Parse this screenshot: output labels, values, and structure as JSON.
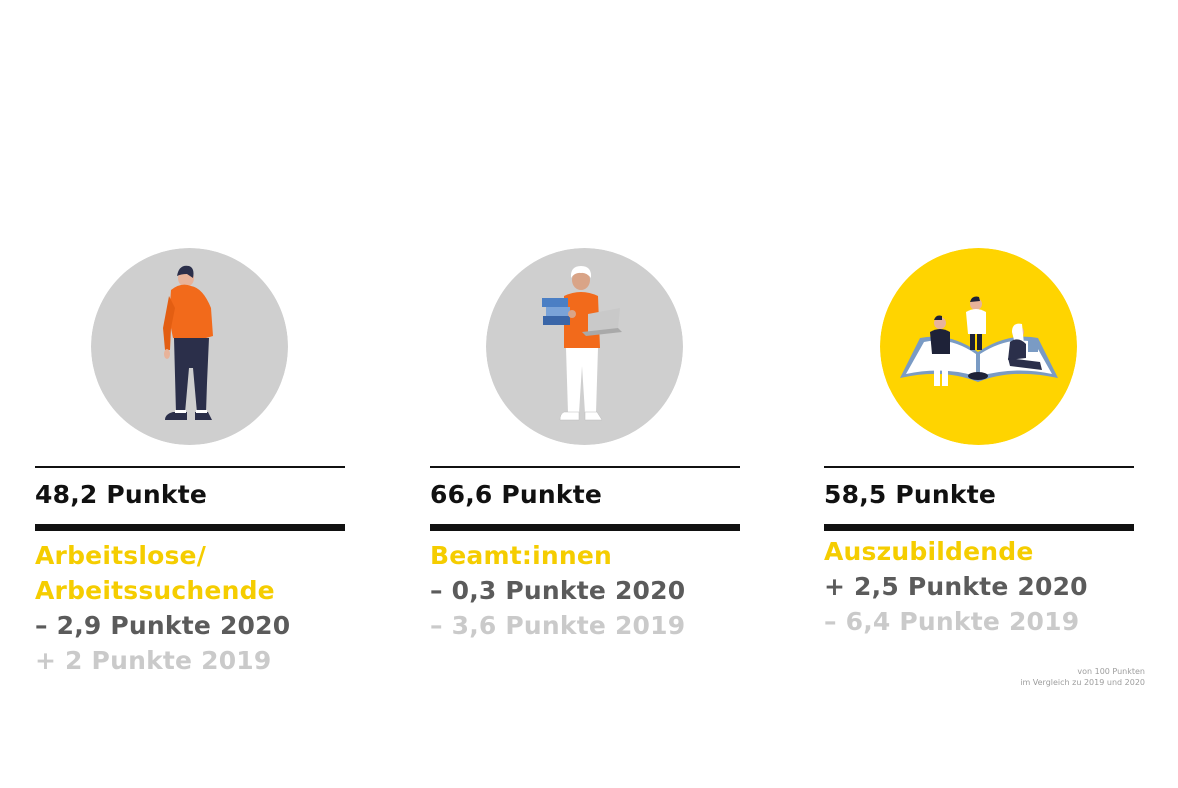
{
  "colors": {
    "accent_yellow": "#f5cd00",
    "text_dark": "#5b5b5b",
    "text_light": "#cacaca",
    "circle_gray": "#cfcfcf",
    "circle_yellow": "#ffd400"
  },
  "cards": [
    {
      "illustration": "standing-person-icon",
      "score": "48,2 Punkte",
      "group_lines": [
        "Arbeitslose/",
        "Arbeitssuchende"
      ],
      "change_2020": "– 2,9 Punkte 2020",
      "change_2019": "+ 2 Punkte 2019"
    },
    {
      "illustration": "person-with-laptop-and-books-icon",
      "score": "66,6 Punkte",
      "group_lines": [
        "Beamt:innen"
      ],
      "change_2020": "– 0,3 Punkte 2020",
      "change_2019": "– 3,6 Punkte 2019"
    },
    {
      "illustration": "people-on-open-book-icon",
      "score": "58,5 Punkte",
      "group_lines": [
        "Auszubildende"
      ],
      "change_2020": "+ 2,5 Punkte 2020",
      "change_2019": "– 6,4 Punkte 2019"
    }
  ],
  "footnote": {
    "line1": "von 100 Punkten",
    "line2": "im Vergleich zu 2019 und 2020"
  }
}
